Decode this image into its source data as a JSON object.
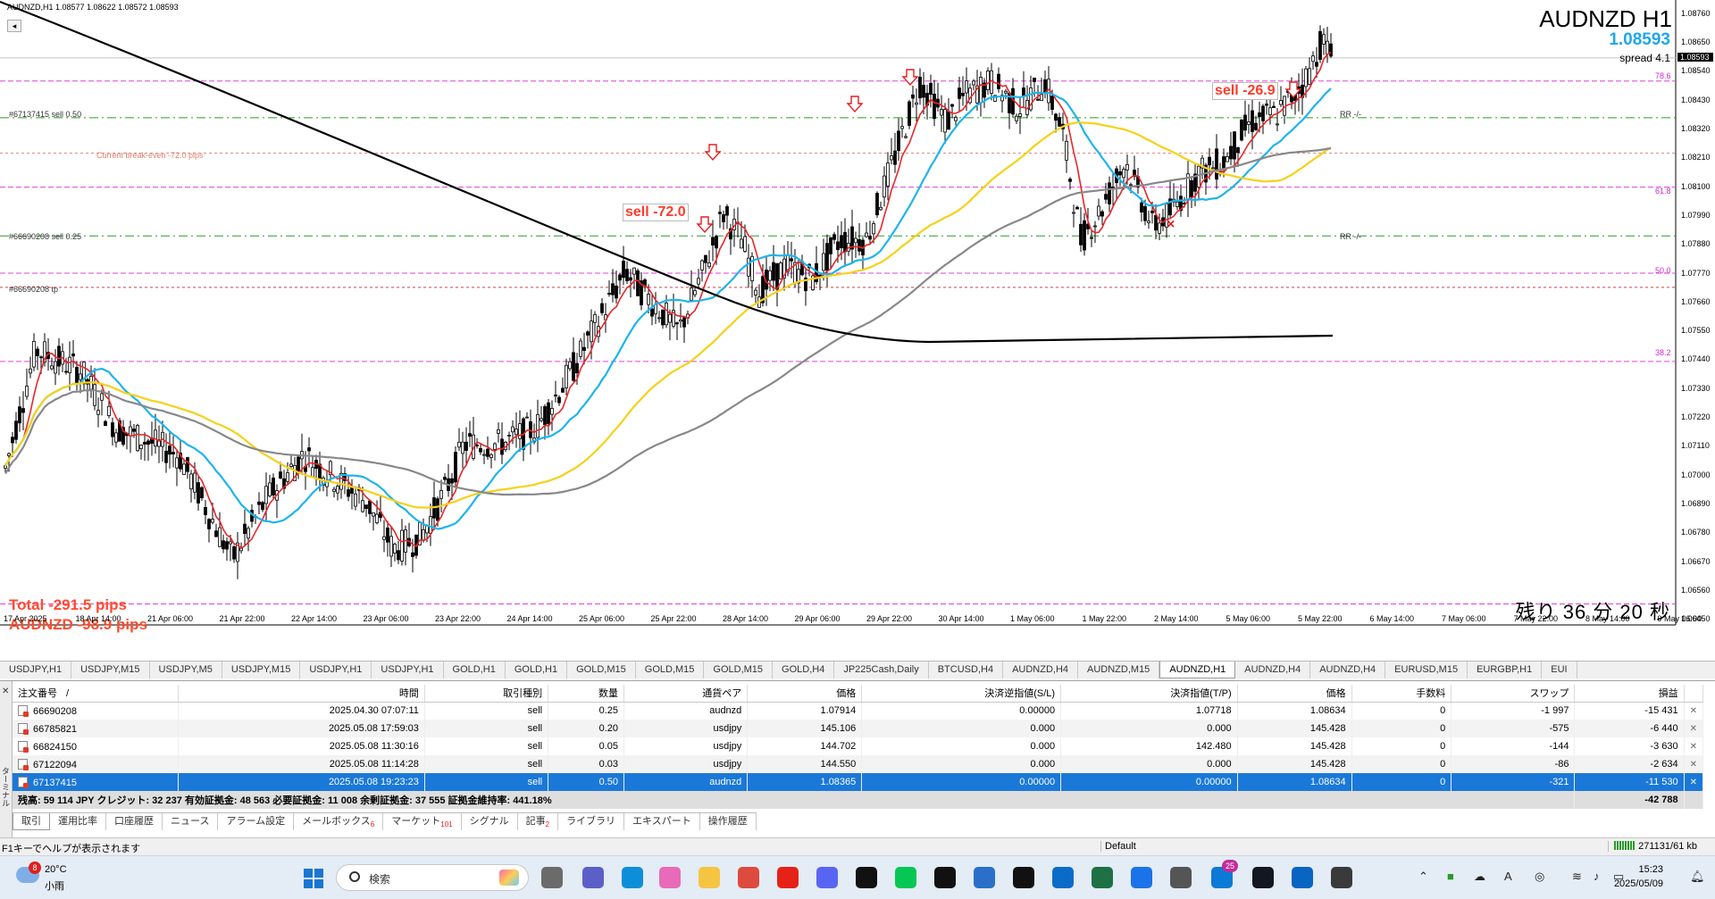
{
  "chart": {
    "header": "AUDNZD,H1  1.08577 1.08622 1.08572 1.08593",
    "title": "AUDNZD H1",
    "price": "1.08593",
    "spread": "spread 4.1",
    "remaining": "残り 36 分 20 秒",
    "total": "Total -291.5 pips",
    "pair_total": "AUDNZD -98.9 pips",
    "sell_label_1": "sell -72.0",
    "sell_label_2": "sell -26.9",
    "order_label_1": "#67137415 sell 0.50",
    "order_label_2": "#66690208 sell 0.25",
    "order_label_3": "#66690208 tp",
    "breakeven_label": "Current break-even -72.0 pips",
    "rr_label": "RR -/-",
    "fib_786": "78.6",
    "fib_618": "61.8",
    "fib_500": "50.0",
    "fib_382": "38.2",
    "current_price_tag": "1.08593",
    "price_axis": [
      "1.08760",
      "1.08650",
      "1.08540",
      "1.08430",
      "1.08320",
      "1.08210",
      "1.08100",
      "1.07990",
      "1.07880",
      "1.07770",
      "1.07660",
      "1.07550",
      "1.07440",
      "1.07330",
      "1.07220",
      "1.07110",
      "1.07000",
      "1.06890",
      "1.06780",
      "1.06670",
      "1.06560",
      "1.06450"
    ],
    "time_axis": [
      "17 Apr 2025",
      "18 Apr 14:00",
      "21 Apr 06:00",
      "21 Apr 22:00",
      "22 Apr 14:00",
      "23 Apr 06:00",
      "23 Apr 22:00",
      "24 Apr 14:00",
      "25 Apr 06:00",
      "25 Apr 22:00",
      "28 Apr 14:00",
      "29 Apr 06:00",
      "29 Apr 22:00",
      "30 Apr 14:00",
      "1 May 06:00",
      "1 May 22:00",
      "2 May 14:00",
      "5 May 06:00",
      "5 May 22:00",
      "6 May 14:00",
      "7 May 06:00",
      "7 May 22:00",
      "8 May 14:00",
      "9 May 06:00"
    ],
    "colors": {
      "ema_fast": "#e8262a",
      "ema_mid": "#1eb4ec",
      "ema_slow": "#f5d118",
      "sma_long": "#888888",
      "sma_black": "#000000",
      "fib": "#e040e0",
      "order_line": "#2a9a2a",
      "candle": "#000000"
    }
  },
  "symbol_tabs": [
    "USDJPY,H1",
    "USDJPY,M15",
    "USDJPY,M5",
    "USDJPY,M15",
    "USDJPY,H1",
    "USDJPY,H1",
    "GOLD,H1",
    "GOLD,H1",
    "GOLD,M15",
    "GOLD,M15",
    "GOLD,M15",
    "GOLD,H4",
    "JP225Cash,Daily",
    "BTCUSD,H4",
    "AUDNZD,H4",
    "AUDNZD,M15",
    "AUDNZD,H1",
    "AUDNZD,H4",
    "AUDNZD,H4",
    "EURUSD,M15",
    "EURGBP,H1",
    "EUI"
  ],
  "active_symbol_tab": 16,
  "terminal": {
    "columns": [
      "注文番号",
      "時間",
      "取引種別",
      "数量",
      "通貨ペア",
      "価格",
      "決済逆指値(S/L)",
      "決済指値(T/P)",
      "価格",
      "手数料",
      "スワップ",
      "損益"
    ],
    "sort_indicator": "/",
    "rows": [
      {
        "ticket": "66690208",
        "time": "2025.04.30 07:07:11",
        "type": "sell",
        "size": "0.25",
        "symbol": "audnzd",
        "price": "1.07914",
        "sl": "0.00000",
        "tp": "1.07718",
        "cur": "1.08634",
        "commission": "0",
        "swap": "-1 997",
        "profit": "-15 431"
      },
      {
        "ticket": "66785821",
        "time": "2025.05.08 17:59:03",
        "type": "sell",
        "size": "0.20",
        "symbol": "usdjpy",
        "price": "145.106",
        "sl": "0.000",
        "tp": "0.000",
        "cur": "145.428",
        "commission": "0",
        "swap": "-575",
        "profit": "-6 440"
      },
      {
        "ticket": "66824150",
        "time": "2025.05.08 11:30:16",
        "type": "sell",
        "size": "0.05",
        "symbol": "usdjpy",
        "price": "144.702",
        "sl": "0.000",
        "tp": "142.480",
        "cur": "145.428",
        "commission": "0",
        "swap": "-144",
        "profit": "-3 630"
      },
      {
        "ticket": "67122094",
        "time": "2025.05.08 11:14:28",
        "type": "sell",
        "size": "0.03",
        "symbol": "usdjpy",
        "price": "144.550",
        "sl": "0.000",
        "tp": "0.000",
        "cur": "145.428",
        "commission": "0",
        "swap": "-86",
        "profit": "-2 634"
      },
      {
        "ticket": "67137415",
        "time": "2025.05.08 19:23:23",
        "type": "sell",
        "size": "0.50",
        "symbol": "audnzd",
        "price": "1.08365",
        "sl": "0.00000",
        "tp": "0.00000",
        "cur": "1.08634",
        "commission": "0",
        "swap": "-321",
        "profit": "-11 530"
      }
    ],
    "selected_row": 4,
    "balance_line": "残高: 59 114 JPY  クレジット: 32 237  有効証拠金: 48 563  必要証拠金: 11 008  余剰証拠金: 37 555  証拠金維持率: 441.18%",
    "balance_total": "-42 788",
    "side_label": "ターミナル",
    "bottom_tabs": [
      {
        "label": "取引",
        "badge": ""
      },
      {
        "label": "運用比率",
        "badge": ""
      },
      {
        "label": "口座履歴",
        "badge": ""
      },
      {
        "label": "ニュース",
        "badge": ""
      },
      {
        "label": "アラーム設定",
        "badge": ""
      },
      {
        "label": "メールボックス",
        "badge": "6"
      },
      {
        "label": "マーケット",
        "badge": "101"
      },
      {
        "label": "シグナル",
        "badge": ""
      },
      {
        "label": "記事",
        "badge": "2"
      },
      {
        "label": "ライブラリ",
        "badge": ""
      },
      {
        "label": "エキスパート",
        "badge": ""
      },
      {
        "label": "操作履歴",
        "badge": ""
      }
    ]
  },
  "statusbar": {
    "help": "F1キーでヘルプが表示されます",
    "profile": "Default",
    "traffic": "271131/61 kb"
  },
  "taskbar": {
    "weather_badge": "8",
    "temperature": "20°C",
    "weather": "小雨",
    "search_placeholder": "検索",
    "mail_badge": "25",
    "time": "15:23",
    "date": "2025/05/09",
    "ime": "A"
  }
}
